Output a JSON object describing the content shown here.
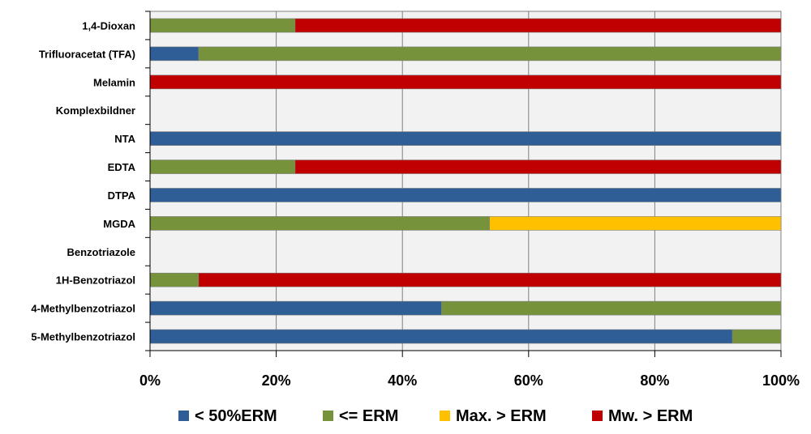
{
  "chart_data": {
    "type": "bar",
    "orientation": "horizontal",
    "stacked": true,
    "percent_stacked": true,
    "title": "",
    "xlabel": "",
    "ylabel": "",
    "xlim": [
      0,
      100
    ],
    "x_ticks": [
      "0%",
      "20%",
      "40%",
      "60%",
      "80%",
      "100%"
    ],
    "grid": true,
    "legend_position": "bottom",
    "categories": [
      "1,4-Dioxan",
      "Trifluoracetat (TFA)",
      "Melamin",
      "Komplexbildner",
      "NTA",
      "EDTA",
      "DTPA",
      "MGDA",
      "Benzotriazole",
      "1H-Benzotriazol",
      "4-Methylbenzotriazol",
      "5-Methylbenzotriazol"
    ],
    "series": [
      {
        "name": "< 50%ERM",
        "color": "#2f5d95",
        "values": [
          0,
          7.7,
          0,
          0,
          100,
          0,
          100,
          0,
          0,
          0,
          46.2,
          92.3
        ]
      },
      {
        "name": "<= ERM",
        "color": "#76933c",
        "values": [
          23,
          92.3,
          0,
          0,
          0,
          23,
          0,
          53.8,
          0,
          7.7,
          53.8,
          7.7
        ]
      },
      {
        "name": "Max. > ERM",
        "color": "#ffc000",
        "values": [
          0,
          0,
          0,
          0,
          0,
          0,
          0,
          46.2,
          0,
          0,
          0,
          0
        ]
      },
      {
        "name": "Mw. > ERM",
        "color": "#c00000",
        "values": [
          77,
          0,
          100,
          0,
          0,
          77,
          0,
          0,
          0,
          92.3,
          0,
          0
        ]
      }
    ]
  }
}
